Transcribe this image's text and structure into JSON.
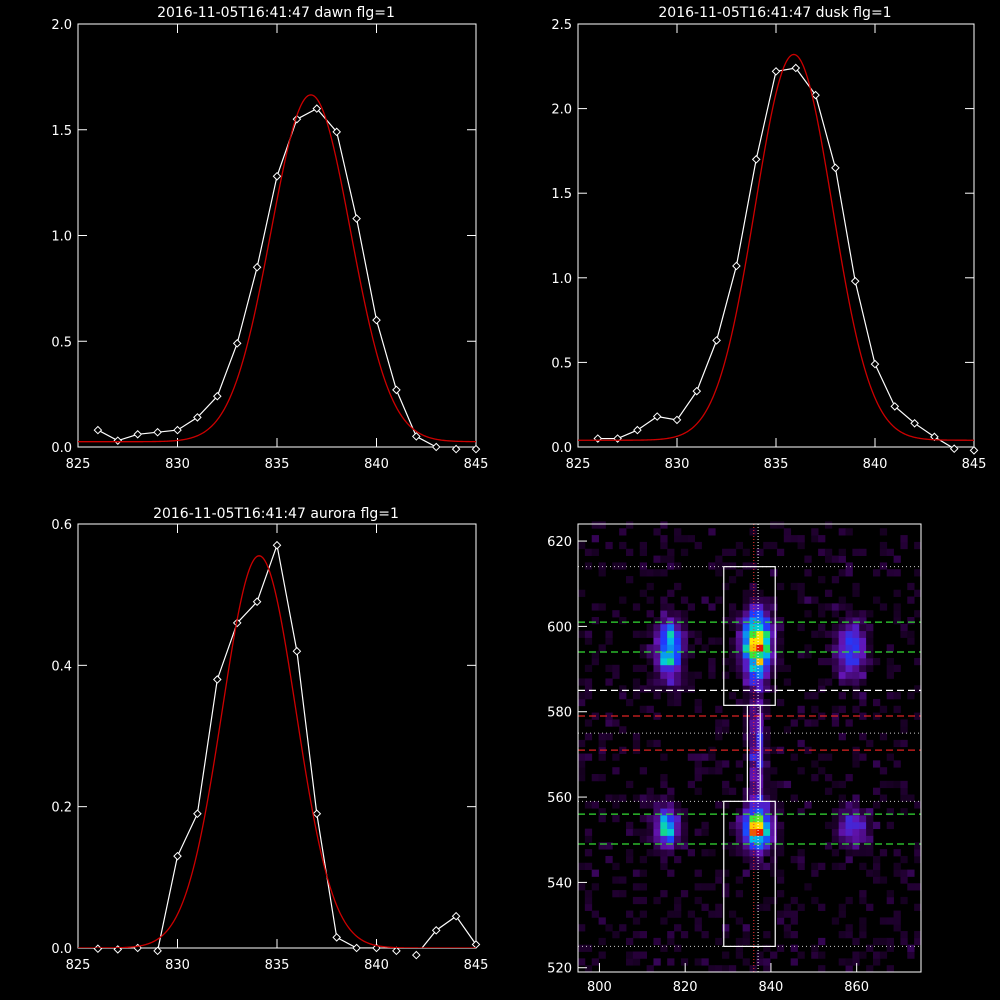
{
  "chart_data": [
    {
      "type": "line",
      "title": "2016-11-05T16:41:47 dawn flg=1",
      "xlim": [
        825,
        845
      ],
      "ylim": [
        0,
        2.0
      ],
      "xticks": [
        825,
        830,
        835,
        840,
        845
      ],
      "yticks": [
        0.0,
        0.5,
        1.0,
        1.5,
        2.0
      ],
      "xtick_labels": [
        "825",
        "830",
        "835",
        "840",
        "845"
      ],
      "ytick_labels": [
        "0.0",
        "0.5",
        "1.0",
        "1.5",
        "2.0"
      ],
      "series": [
        {
          "style": "line+diamond",
          "color": "#ffffff",
          "x": [
            826,
            827,
            828,
            829,
            830,
            831,
            832,
            833,
            834,
            835,
            836,
            837,
            838,
            839,
            840,
            841,
            842,
            843,
            844,
            845
          ],
          "y": [
            0.08,
            0.03,
            0.06,
            0.07,
            0.08,
            0.14,
            0.24,
            0.49,
            0.85,
            1.28,
            1.55,
            1.6,
            1.49,
            1.08,
            0.6,
            0.27,
            0.05,
            0.0,
            -0.01,
            -0.01
          ]
        },
        {
          "style": "gaussian-fit",
          "color": "#cc0000",
          "amp": 1.64,
          "center": 836.7,
          "sigma": 2.0,
          "base": 0.025,
          "x": [],
          "y": []
        }
      ],
      "grid": false
    },
    {
      "type": "line",
      "title": "2016-11-05T16:41:47 dusk flg=1",
      "xlim": [
        825,
        845
      ],
      "ylim": [
        0,
        2.5
      ],
      "xticks": [
        825,
        830,
        835,
        840,
        845
      ],
      "yticks": [
        0.0,
        0.5,
        1.0,
        1.5,
        2.0,
        2.5
      ],
      "xtick_labels": [
        "825",
        "830",
        "835",
        "840",
        "845"
      ],
      "ytick_labels": [
        "0.0",
        "0.5",
        "1.0",
        "1.5",
        "2.0",
        "2.5"
      ],
      "series": [
        {
          "style": "line+diamond",
          "color": "#ffffff",
          "x": [
            826,
            827,
            828,
            829,
            830,
            831,
            832,
            833,
            834,
            835,
            836,
            837,
            838,
            839,
            840,
            841,
            842,
            843,
            844,
            845
          ],
          "y": [
            0.05,
            0.05,
            0.1,
            0.18,
            0.16,
            0.33,
            0.63,
            1.07,
            1.7,
            2.22,
            2.24,
            2.08,
            1.65,
            0.98,
            0.49,
            0.24,
            0.14,
            0.06,
            -0.01,
            -0.02
          ]
        },
        {
          "style": "gaussian-fit",
          "color": "#cc0000",
          "amp": 2.28,
          "center": 835.9,
          "sigma": 1.95,
          "base": 0.04,
          "x": [],
          "y": []
        }
      ],
      "grid": false
    },
    {
      "type": "line",
      "title": "2016-11-05T16:41:47 aurora flg=1",
      "xlim": [
        825,
        845
      ],
      "ylim": [
        0,
        0.6
      ],
      "xticks": [
        825,
        830,
        835,
        840,
        845
      ],
      "yticks": [
        0.0,
        0.2,
        0.4,
        0.6
      ],
      "xtick_labels": [
        "825",
        "830",
        "835",
        "840",
        "845"
      ],
      "ytick_labels": [
        "0.0",
        "0.2",
        "0.4",
        "0.6"
      ],
      "series": [
        {
          "style": "line+diamond",
          "color": "#ffffff",
          "x": [
            826,
            827,
            828,
            829,
            830,
            831,
            832,
            833,
            834,
            835,
            836,
            837,
            838,
            839,
            840,
            841,
            842,
            843,
            844,
            845
          ],
          "y": [
            -0.001,
            -0.002,
            0.0,
            -0.004,
            0.13,
            0.19,
            0.38,
            0.46,
            0.49,
            0.57,
            0.42,
            0.19,
            0.015,
            0.0,
            0.0,
            -0.004,
            -0.01,
            0.025,
            0.045,
            0.005
          ]
        },
        {
          "style": "gaussian-fit",
          "color": "#cc0000",
          "amp": 0.555,
          "center": 834.1,
          "sigma": 1.85,
          "base": 0.0,
          "x": [],
          "y": []
        }
      ],
      "grid": false
    },
    {
      "type": "heatmap",
      "title": "",
      "xlim": [
        795,
        875
      ],
      "ylim": [
        519,
        624
      ],
      "xticks": [
        800,
        820,
        840,
        860
      ],
      "yticks": [
        520,
        540,
        560,
        580,
        600,
        620
      ],
      "xtick_labels": [
        "800",
        "820",
        "840",
        "860"
      ],
      "ytick_labels": [
        "520",
        "540",
        "560",
        "580",
        "600",
        "620"
      ],
      "colormap": "rainbow",
      "blobs": [
        {
          "x": 815.5,
          "y": 594,
          "sx": 2.0,
          "sy": 4.5,
          "amp": 0.62
        },
        {
          "x": 836.0,
          "y": 595,
          "sx": 2.2,
          "sy": 5.0,
          "amp": 1.0
        },
        {
          "x": 858.0,
          "y": 594,
          "sx": 2.2,
          "sy": 4.5,
          "amp": 0.4
        },
        {
          "x": 815.0,
          "y": 552,
          "sx": 2.0,
          "sy": 3.0,
          "amp": 0.55
        },
        {
          "x": 836.0,
          "y": 552,
          "sx": 2.2,
          "sy": 3.5,
          "amp": 0.85
        },
        {
          "x": 858.5,
          "y": 552,
          "sx": 2.5,
          "sy": 3.0,
          "amp": 0.28
        },
        {
          "x": 836.0,
          "y": 570,
          "sx": 1.2,
          "sy": 9.0,
          "amp": 0.3
        }
      ],
      "boxes": [
        {
          "x0": 829,
          "x1": 841,
          "y0": 581.5,
          "y1": 614
        },
        {
          "x0": 829,
          "x1": 841,
          "y0": 525,
          "y1": 559
        },
        {
          "x0": 834.5,
          "x1": 837.5,
          "y0": 559,
          "y1": 581.5
        }
      ],
      "hlines_green": [
        601,
        594,
        556,
        549
      ],
      "hlines_red": [
        579,
        571
      ],
      "hlines_white_dashed": [
        585
      ],
      "hlines_dotted": [
        614,
        575,
        559,
        525
      ],
      "vlines_red_dotted": [
        836.0
      ],
      "vlines_white_dotted": [
        837.0
      ]
    }
  ]
}
